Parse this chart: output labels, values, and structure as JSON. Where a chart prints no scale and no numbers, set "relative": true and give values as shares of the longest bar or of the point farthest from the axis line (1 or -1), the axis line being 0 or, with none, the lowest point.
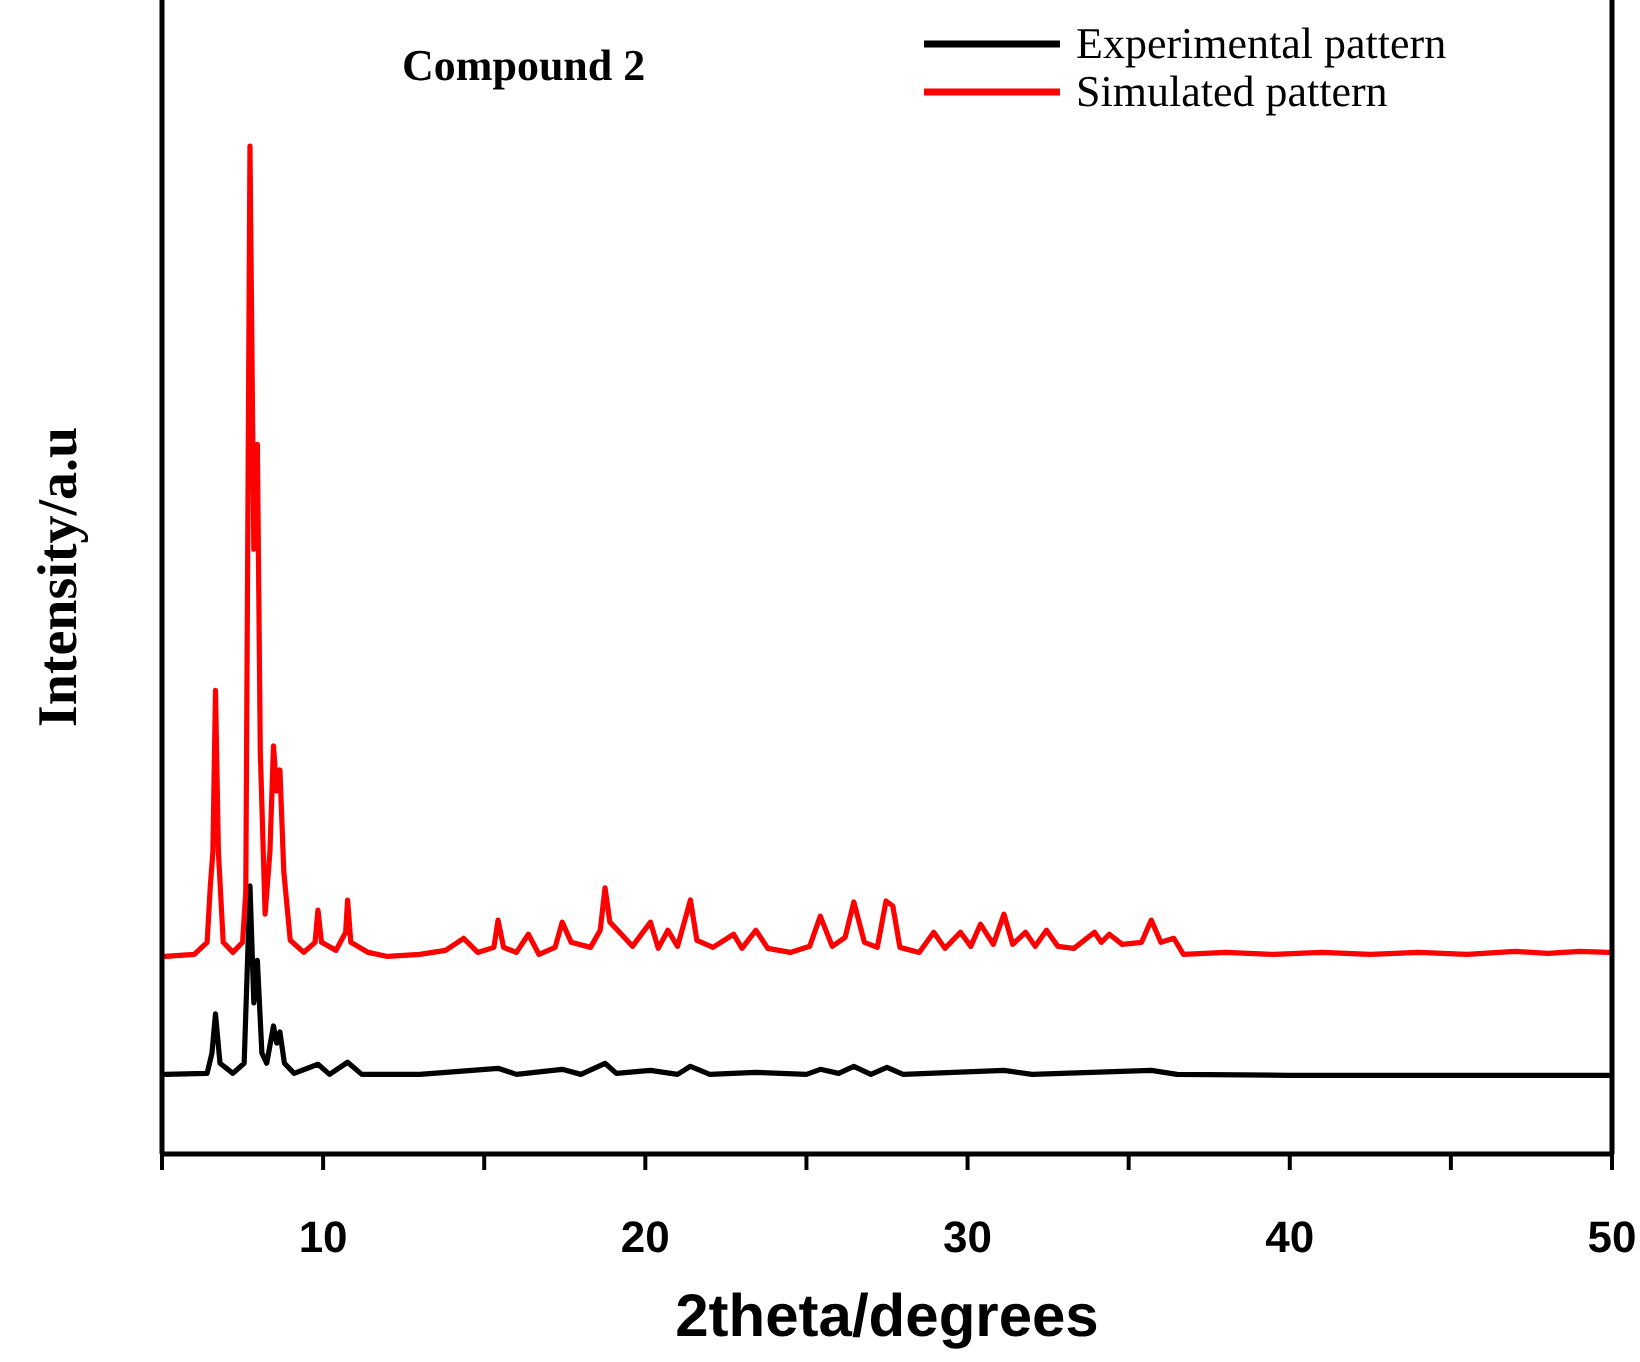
{
  "chart_data": {
    "type": "line",
    "title": "Compound 2",
    "xlabel": "2theta/degrees",
    "ylabel": "Intensity/a.u",
    "relative": true,
    "xlim": [
      5,
      50
    ],
    "xticks": [
      {
        "value": 5,
        "label": null
      },
      10,
      {
        "value": 15,
        "label": null
      },
      20,
      {
        "value": 25,
        "label": null
      },
      30,
      {
        "value": 35,
        "label": null
      },
      40,
      {
        "value": 45,
        "label": null
      },
      50
    ],
    "tick_labels": "x",
    "grid": false,
    "legend": "top right",
    "marker": "none",
    "line_style": "solid",
    "series": [
      {
        "name": "Experimental pattern",
        "color": "#000000",
        "x": [
          5.1,
          6.4,
          6.55,
          6.66,
          6.8,
          7.2,
          7.55,
          7.73,
          7.85,
          7.96,
          8.1,
          8.25,
          8.46,
          8.56,
          8.66,
          8.8,
          9.1,
          9.84,
          10.2,
          10.76,
          11.2,
          13,
          15.43,
          16,
          17.42,
          18,
          18.75,
          19.1,
          20.16,
          21,
          21.4,
          22,
          23.43,
          25,
          25.43,
          26,
          26.47,
          27,
          27.5,
          28,
          31.13,
          32,
          35.7,
          36.5,
          40,
          45,
          49.9
        ],
        "values": [
          0.079,
          0.08,
          0.1,
          0.139,
          0.09,
          0.08,
          0.09,
          0.266,
          0.15,
          0.192,
          0.1,
          0.09,
          0.127,
          0.11,
          0.121,
          0.09,
          0.08,
          0.089,
          0.079,
          0.091,
          0.079,
          0.079,
          0.085,
          0.079,
          0.084,
          0.079,
          0.09,
          0.08,
          0.083,
          0.079,
          0.087,
          0.079,
          0.081,
          0.079,
          0.084,
          0.08,
          0.087,
          0.079,
          0.086,
          0.079,
          0.083,
          0.079,
          0.083,
          0.079,
          0.078,
          0.078,
          0.078
        ]
      },
      {
        "name": "Simulated pattern",
        "color": "#ff0000",
        "x": [
          5.1,
          6.0,
          6.4,
          6.5,
          6.58,
          6.66,
          6.75,
          6.9,
          7.2,
          7.5,
          7.6,
          7.73,
          7.85,
          7.96,
          8.05,
          8.2,
          8.35,
          8.46,
          8.56,
          8.66,
          8.78,
          8.98,
          9.4,
          9.75,
          9.84,
          9.95,
          10.4,
          10.7,
          10.76,
          10.86,
          11.4,
          12,
          13,
          13.8,
          14.36,
          14.8,
          15.3,
          15.43,
          15.6,
          16.0,
          16.37,
          16.7,
          17.2,
          17.42,
          17.7,
          18.3,
          18.6,
          18.75,
          18.9,
          19.2,
          19.6,
          20.16,
          20.4,
          20.7,
          21.0,
          21.4,
          21.6,
          22.1,
          22.74,
          23.0,
          23.43,
          23.8,
          24.5,
          25.1,
          25.43,
          25.8,
          26.2,
          26.47,
          26.8,
          27.2,
          27.47,
          27.68,
          27.9,
          28.5,
          28.95,
          29.3,
          29.78,
          30.1,
          30.4,
          30.8,
          31.13,
          31.4,
          31.8,
          32.1,
          32.45,
          32.8,
          33.3,
          33.94,
          34.15,
          34.4,
          34.8,
          35.4,
          35.7,
          36.0,
          36.4,
          36.7,
          38,
          39.5,
          41,
          42.5,
          44,
          45.5,
          47,
          48,
          49,
          49.9
        ],
        "values": [
          0.196,
          0.198,
          0.21,
          0.266,
          0.3,
          0.46,
          0.3,
          0.21,
          0.2,
          0.21,
          0.26,
          1,
          0.6,
          0.704,
          0.4,
          0.238,
          0.3,
          0.405,
          0.36,
          0.381,
          0.28,
          0.212,
          0.2,
          0.21,
          0.242,
          0.21,
          0.202,
          0.22,
          0.252,
          0.21,
          0.2,
          0.196,
          0.198,
          0.202,
          0.214,
          0.2,
          0.205,
          0.232,
          0.205,
          0.2,
          0.218,
          0.198,
          0.205,
          0.23,
          0.21,
          0.205,
          0.222,
          0.264,
          0.23,
          0.22,
          0.206,
          0.23,
          0.204,
          0.222,
          0.206,
          0.252,
          0.212,
          0.205,
          0.218,
          0.204,
          0.222,
          0.204,
          0.2,
          0.206,
          0.236,
          0.206,
          0.215,
          0.25,
          0.21,
          0.205,
          0.251,
          0.246,
          0.205,
          0.2,
          0.22,
          0.204,
          0.22,
          0.206,
          0.228,
          0.208,
          0.238,
          0.208,
          0.22,
          0.206,
          0.222,
          0.206,
          0.204,
          0.22,
          0.21,
          0.218,
          0.208,
          0.21,
          0.232,
          0.21,
          0.214,
          0.198,
          0.2,
          0.198,
          0.2,
          0.198,
          0.2,
          0.198,
          0.201,
          0.199,
          0.201,
          0.2
        ]
      }
    ]
  }
}
